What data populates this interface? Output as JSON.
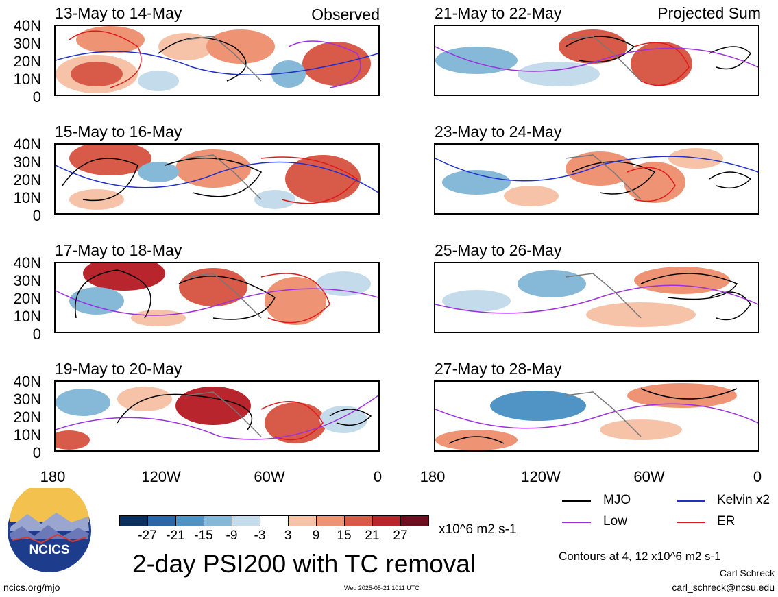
{
  "panels": [
    {
      "title": "13-May to 14-May",
      "label": "Observed"
    },
    {
      "title": "15-May to 16-May",
      "label": ""
    },
    {
      "title": "17-May to 18-May",
      "label": ""
    },
    {
      "title": "19-May to 20-May",
      "label": ""
    },
    {
      "title": "21-May to 22-May",
      "label": "Projected Sum"
    },
    {
      "title": "23-May to 24-May",
      "label": ""
    },
    {
      "title": "25-May to 26-May",
      "label": ""
    },
    {
      "title": "27-May to 28-May",
      "label": ""
    }
  ],
  "lat_labels": [
    "40N",
    "30N",
    "20N",
    "10N",
    "0"
  ],
  "lon_labels": [
    "180",
    "120W",
    "60W",
    "0"
  ],
  "colorbar": {
    "ticks": [
      "-27",
      "-21",
      "-15",
      "-9",
      "-3",
      "3",
      "9",
      "15",
      "21",
      "27"
    ],
    "units": "x10^6 m2 s-1",
    "colors": [
      "#0b2f5c",
      "#2a66a8",
      "#4f94c4",
      "#86b8d8",
      "#c4dbeb",
      "#ffffff",
      "#f7c3a8",
      "#ee9373",
      "#d85a48",
      "#b8252d",
      "#6d0f1f"
    ]
  },
  "main_title": "2-day PSI200 with TC removal",
  "legend": {
    "items": [
      {
        "label": "MJO",
        "color": "#000000"
      },
      {
        "label": "Kelvin x2",
        "color": "#1f2fcc"
      },
      {
        "label": "Low",
        "color": "#9b30e0"
      },
      {
        "label": "ER",
        "color": "#e01a1a"
      }
    ],
    "contours_note": "Contours at 4, 12 x10^6 m2 s-1"
  },
  "credits": {
    "author": "Carl Schreck",
    "email": "carl_schreck@ncsu.edu",
    "site": "ncics.org/mjo",
    "timestamp": "Wed 2025-05-21 1011 UTC",
    "logo_text": "NCICS"
  }
}
